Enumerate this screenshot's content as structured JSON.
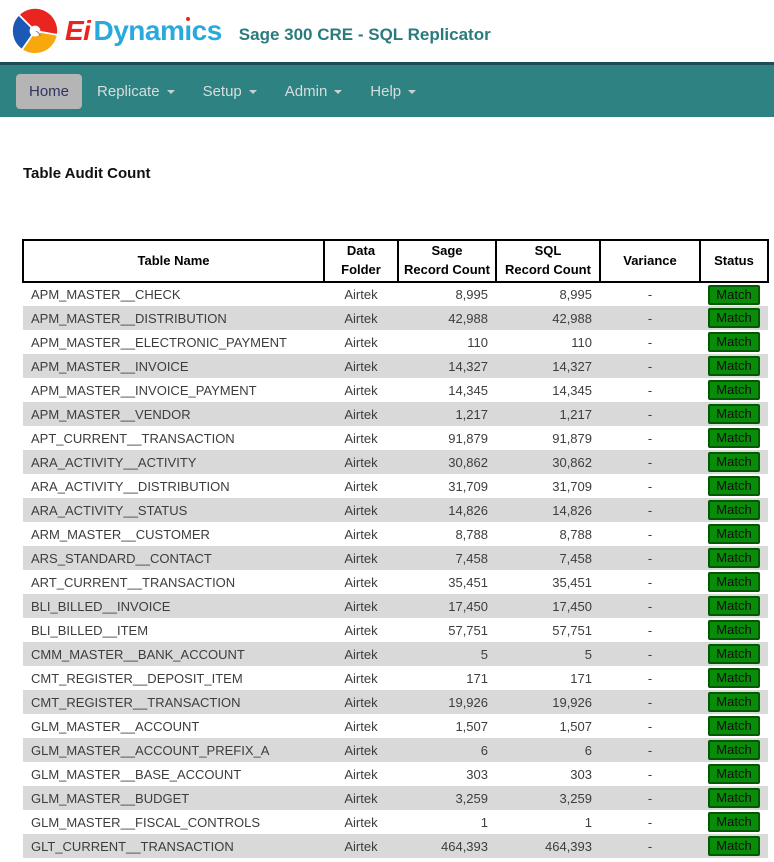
{
  "header": {
    "brand": {
      "first": "Ei",
      "rest_pre": "Dynam",
      "i_char": "ı",
      "rest_post": "cs"
    },
    "title": "Sage 300 CRE - SQL Replicator"
  },
  "nav": {
    "items": [
      {
        "label": "Home",
        "active": true,
        "dropdown": false
      },
      {
        "label": "Replicate",
        "active": false,
        "dropdown": true
      },
      {
        "label": "Setup",
        "active": false,
        "dropdown": true
      },
      {
        "label": "Admin",
        "active": false,
        "dropdown": true
      },
      {
        "label": "Help",
        "active": false,
        "dropdown": true
      }
    ]
  },
  "main": {
    "page_title": "Table Audit Count",
    "table": {
      "columns": [
        "Table Name",
        "Data Folder",
        "Sage\nRecord Count",
        "SQL\nRecord Count",
        "Variance",
        "Status"
      ],
      "rows": [
        [
          "APM_MASTER__CHECK",
          "Airtek",
          "8,995",
          "8,995",
          "-",
          "Match"
        ],
        [
          "APM_MASTER__DISTRIBUTION",
          "Airtek",
          "42,988",
          "42,988",
          "-",
          "Match"
        ],
        [
          "APM_MASTER__ELECTRONIC_PAYMENT",
          "Airtek",
          "110",
          "110",
          "-",
          "Match"
        ],
        [
          "APM_MASTER__INVOICE",
          "Airtek",
          "14,327",
          "14,327",
          "-",
          "Match"
        ],
        [
          "APM_MASTER__INVOICE_PAYMENT",
          "Airtek",
          "14,345",
          "14,345",
          "-",
          "Match"
        ],
        [
          "APM_MASTER__VENDOR",
          "Airtek",
          "1,217",
          "1,217",
          "-",
          "Match"
        ],
        [
          "APT_CURRENT__TRANSACTION",
          "Airtek",
          "91,879",
          "91,879",
          "-",
          "Match"
        ],
        [
          "ARA_ACTIVITY__ACTIVITY",
          "Airtek",
          "30,862",
          "30,862",
          "-",
          "Match"
        ],
        [
          "ARA_ACTIVITY__DISTRIBUTION",
          "Airtek",
          "31,709",
          "31,709",
          "-",
          "Match"
        ],
        [
          "ARA_ACTIVITY__STATUS",
          "Airtek",
          "14,826",
          "14,826",
          "-",
          "Match"
        ],
        [
          "ARM_MASTER__CUSTOMER",
          "Airtek",
          "8,788",
          "8,788",
          "-",
          "Match"
        ],
        [
          "ARS_STANDARD__CONTACT",
          "Airtek",
          "7,458",
          "7,458",
          "-",
          "Match"
        ],
        [
          "ART_CURRENT__TRANSACTION",
          "Airtek",
          "35,451",
          "35,451",
          "-",
          "Match"
        ],
        [
          "BLI_BILLED__INVOICE",
          "Airtek",
          "17,450",
          "17,450",
          "-",
          "Match"
        ],
        [
          "BLI_BILLED__ITEM",
          "Airtek",
          "57,751",
          "57,751",
          "-",
          "Match"
        ],
        [
          "CMM_MASTER__BANK_ACCOUNT",
          "Airtek",
          "5",
          "5",
          "-",
          "Match"
        ],
        [
          "CMT_REGISTER__DEPOSIT_ITEM",
          "Airtek",
          "171",
          "171",
          "-",
          "Match"
        ],
        [
          "CMT_REGISTER__TRANSACTION",
          "Airtek",
          "19,926",
          "19,926",
          "-",
          "Match"
        ],
        [
          "GLM_MASTER__ACCOUNT",
          "Airtek",
          "1,507",
          "1,507",
          "-",
          "Match"
        ],
        [
          "GLM_MASTER__ACCOUNT_PREFIX_A",
          "Airtek",
          "6",
          "6",
          "-",
          "Match"
        ],
        [
          "GLM_MASTER__BASE_ACCOUNT",
          "Airtek",
          "303",
          "303",
          "-",
          "Match"
        ],
        [
          "GLM_MASTER__BUDGET",
          "Airtek",
          "3,259",
          "3,259",
          "-",
          "Match"
        ],
        [
          "GLM_MASTER__FISCAL_CONTROLS",
          "Airtek",
          "1",
          "1",
          "-",
          "Match"
        ],
        [
          "GLT_CURRENT__TRANSACTION",
          "Airtek",
          "464,393",
          "464,393",
          "-",
          "Match"
        ]
      ]
    }
  },
  "colors": {
    "nav_teal": "#2e8281",
    "nav_border_dark": "#1d4e55",
    "title_teal": "#2a7b7e",
    "brand_red": "#e8251f",
    "brand_blue": "#2aa9dd",
    "logo_blue": "#1b59b5",
    "logo_yellow": "#f7a80d",
    "status_match_bg": "#0a8c0a",
    "status_match_border": "#005a00",
    "row_stripe": "#d9d9d9"
  }
}
